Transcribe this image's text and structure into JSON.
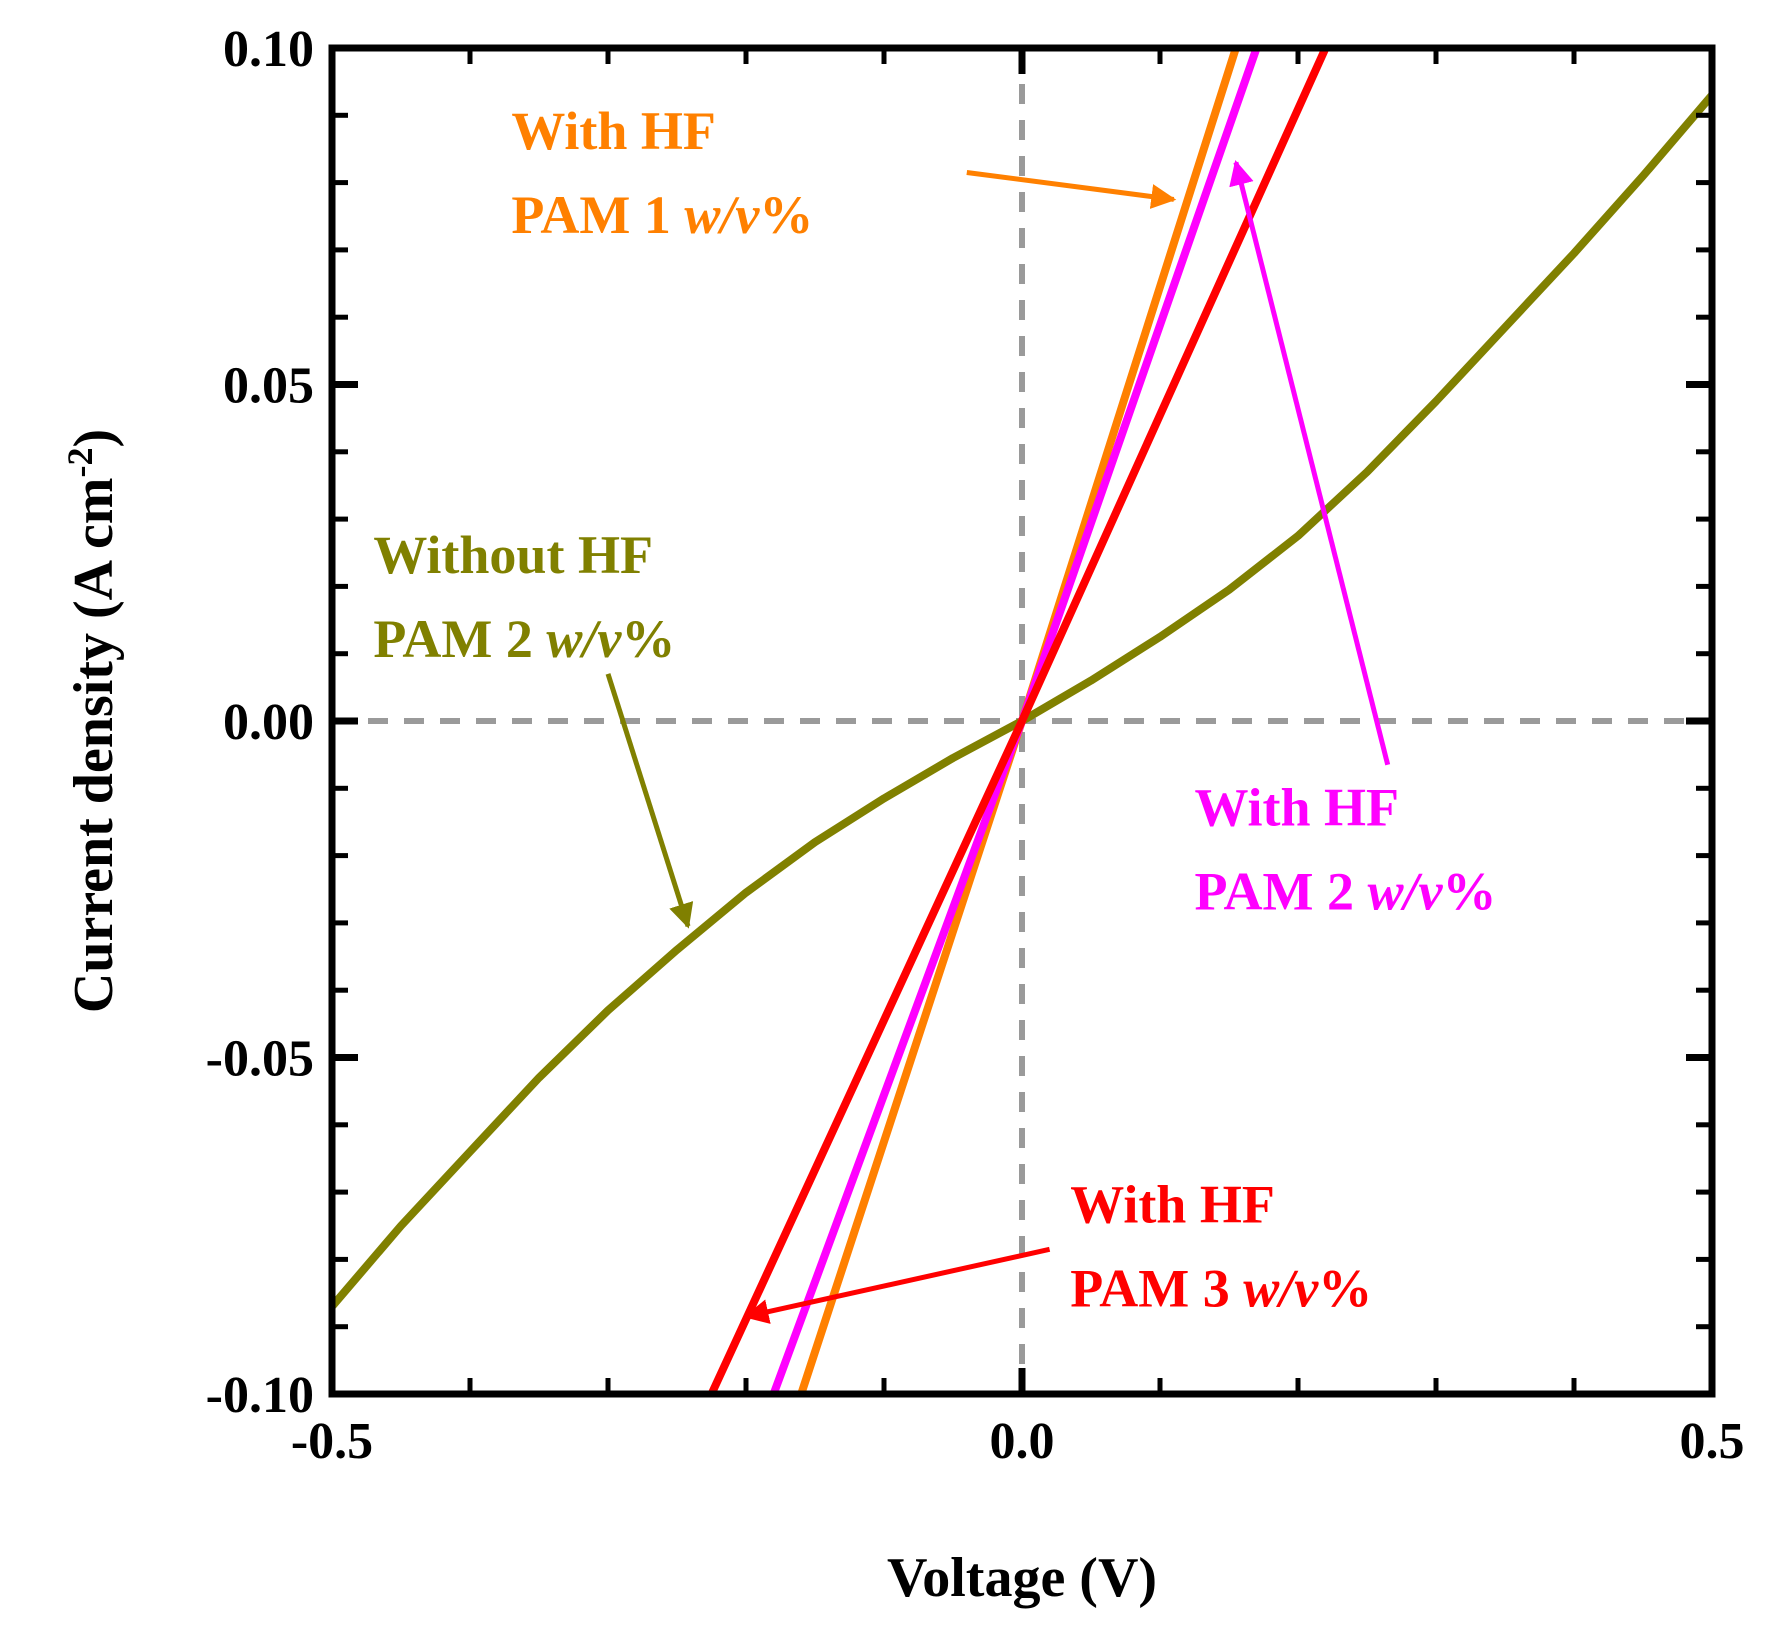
{
  "chart_data": {
    "type": "line",
    "title": "",
    "xlabel": "Voltage (V)",
    "ylabel": "Current density (A cm",
    "ylabel_superscript": "-2",
    "ylabel_close": ")",
    "xlim": [
      -0.5,
      0.5
    ],
    "ylim": [
      -0.1,
      0.1
    ],
    "x_ticks": [
      -0.5,
      0.0,
      0.5
    ],
    "x_tick_labels": [
      "-0.5",
      "0.0",
      "0.5"
    ],
    "y_ticks": [
      -0.1,
      -0.05,
      0.0,
      0.05,
      0.1
    ],
    "y_tick_labels": [
      "-0.10",
      "-0.05",
      "0.00",
      "0.05",
      "0.10"
    ],
    "x_minor_step": 0.1,
    "y_minor_step": 0.01,
    "grid": false,
    "reference_lines": {
      "x0": true,
      "y0": true
    },
    "series": [
      {
        "name": "Without HF PAM 2 w/v%",
        "color": "#808000",
        "x": [
          -0.5,
          -0.45,
          -0.4,
          -0.35,
          -0.3,
          -0.25,
          -0.2,
          -0.15,
          -0.1,
          -0.05,
          0.0,
          0.05,
          0.1,
          0.15,
          0.2,
          0.25,
          0.3,
          0.35,
          0.4,
          0.45,
          0.5
        ],
        "y": [
          -0.087,
          -0.075,
          -0.064,
          -0.053,
          -0.043,
          -0.034,
          -0.0255,
          -0.018,
          -0.0115,
          -0.0055,
          0.0,
          0.006,
          0.0125,
          0.0195,
          0.0275,
          0.037,
          0.0475,
          0.0585,
          0.0695,
          0.081,
          0.093
        ]
      },
      {
        "name": "With HF PAM 1 w/v%",
        "color": "#ff8000",
        "x": [
          -0.16,
          0.0,
          0.155
        ],
        "y": [
          -0.1,
          0.0,
          0.1
        ]
      },
      {
        "name": "With HF PAM 2 w/v%",
        "color": "#ff00ff",
        "x": [
          -0.18,
          0.0,
          0.17
        ],
        "y": [
          -0.1,
          0.0,
          0.1
        ]
      },
      {
        "name": "With HF PAM 3 w/v%",
        "color": "#ff0000",
        "x": [
          -0.225,
          0.0,
          0.22
        ],
        "y": [
          -0.1,
          0.0,
          0.1
        ]
      }
    ],
    "annotations": [
      {
        "line1": "With HF",
        "line2_prefix": "PAM 1 ",
        "line2_unit": "w/v",
        "line2_suffix": "%",
        "color": "#ff8000",
        "text_anchor": [
          -0.37,
          0.085
        ],
        "arrow_from": [
          -0.04,
          0.0815
        ],
        "arrow_to": [
          0.11,
          0.0775
        ]
      },
      {
        "line1": "Without HF",
        "line2_prefix": "PAM 2 ",
        "line2_unit": "w/v",
        "line2_suffix": "%",
        "color": "#808000",
        "text_anchor": [
          -0.47,
          0.022
        ],
        "arrow_from": [
          -0.3,
          0.007
        ],
        "arrow_to": [
          -0.242,
          -0.0305
        ]
      },
      {
        "line1": "With HF",
        "line2_prefix": "PAM 2 ",
        "line2_unit": "w/v",
        "line2_suffix": "%",
        "color": "#ff00ff",
        "text_anchor": [
          0.125,
          -0.0155
        ],
        "arrow_from": [
          0.265,
          -0.0065
        ],
        "arrow_to": [
          0.155,
          0.083
        ]
      },
      {
        "line1": "With HF",
        "line2_prefix": "PAM 3 ",
        "line2_unit": "w/v",
        "line2_suffix": "%",
        "color": "#ff0000",
        "text_anchor": [
          0.035,
          -0.0745
        ],
        "arrow_from": [
          0.02,
          -0.0785
        ],
        "arrow_to": [
          -0.2,
          -0.0885
        ]
      }
    ]
  }
}
